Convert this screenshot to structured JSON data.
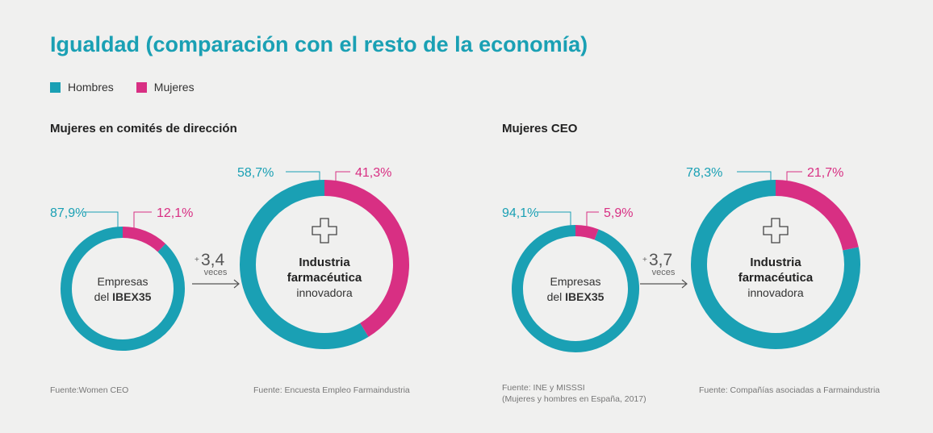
{
  "title": "Igualdad (comparación con el resto de la economía)",
  "legend": [
    {
      "label": "Hombres",
      "color": "#1aa0b4"
    },
    {
      "label": "Mujeres",
      "color": "#d82f83"
    }
  ],
  "sections": {
    "left": {
      "title": "Mujeres en comités de dirección"
    },
    "right": {
      "title": "Mujeres CEO"
    }
  },
  "sources": {
    "s1": "Fuente:Women CEO",
    "s2": "Fuente: Encuesta Empleo Farmaindustria",
    "s3a": "Fuente: INE y MISSSI",
    "s3b": "(Mujeres y hombres en España, 2017)",
    "s4": "Fuente: Compañías asociadas a Farmaindustria"
  },
  "chart_data": [
    {
      "type": "pie",
      "section": "Mujeres en comités de dirección",
      "center_label": [
        "Empresas",
        "del ",
        "IBEX35"
      ],
      "categories": [
        "Hombres",
        "Mujeres"
      ],
      "values": [
        87.9,
        12.1
      ],
      "labels": [
        "87,9%",
        "12,1%"
      ]
    },
    {
      "type": "pie",
      "section": "Mujeres en comités de dirección",
      "center_label": [
        "Industria",
        "farmacéutica",
        "innovadora"
      ],
      "categories": [
        "Hombres",
        "Mujeres"
      ],
      "values": [
        58.7,
        41.3
      ],
      "labels": [
        "58,7%",
        "41,3%"
      ]
    },
    {
      "type": "pie",
      "section": "Mujeres CEO",
      "center_label": [
        "Empresas",
        "del ",
        "IBEX35"
      ],
      "categories": [
        "Hombres",
        "Mujeres"
      ],
      "values": [
        94.1,
        5.9
      ],
      "labels": [
        "94,1%",
        "5,9%"
      ]
    },
    {
      "type": "pie",
      "section": "Mujeres CEO",
      "center_label": [
        "Industria",
        "farmacéutica",
        "innovadora"
      ],
      "categories": [
        "Hombres",
        "Mujeres"
      ],
      "values": [
        78.3,
        21.7
      ],
      "labels": [
        "78,3%",
        "21,7%"
      ]
    }
  ],
  "comparisons": [
    {
      "prefix": "+",
      "factor": "3,4",
      "unit": "veces"
    },
    {
      "prefix": "+",
      "factor": "3,7",
      "unit": "veces"
    }
  ],
  "colors": {
    "hombres": "#1aa0b4",
    "mujeres": "#d82f83",
    "text": "#333333",
    "line_gray": "#555555"
  }
}
